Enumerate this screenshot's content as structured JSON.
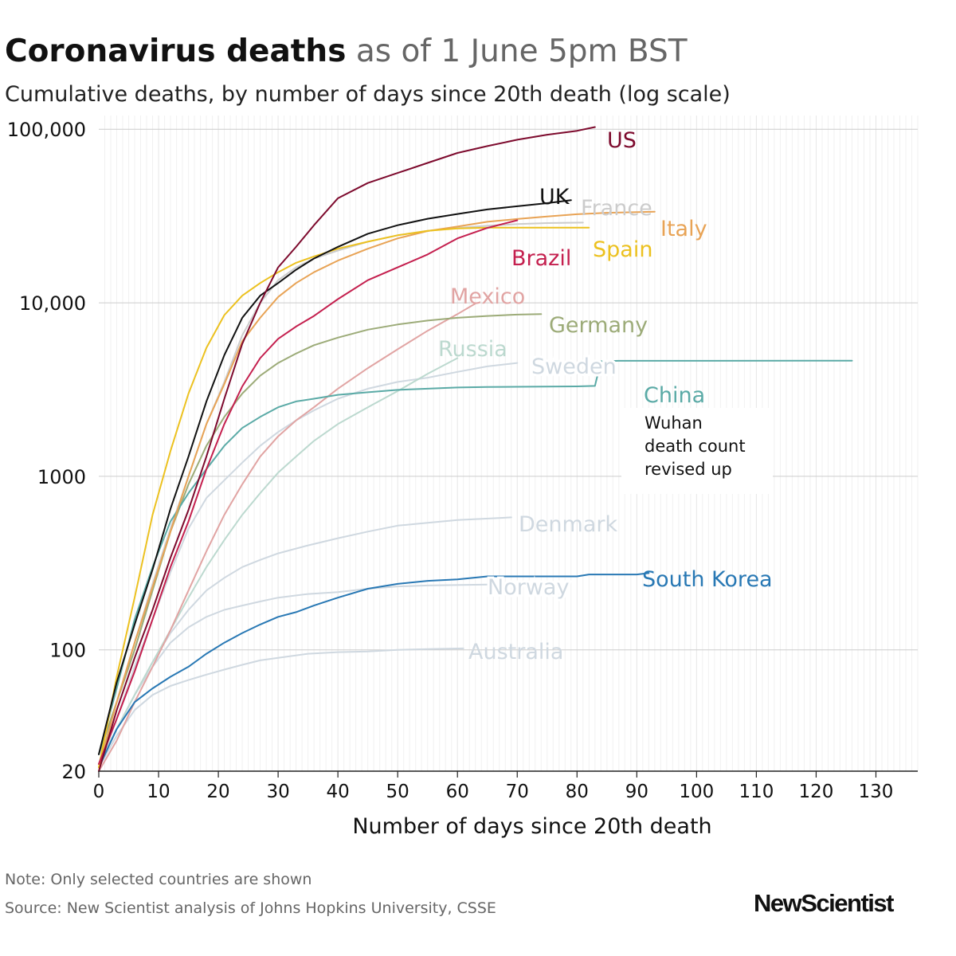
{
  "header": {
    "title_bold": "Coronavirus deaths",
    "title_rest": "as of 1 June 5pm BST",
    "subtitle": "Cumulative deaths, by number of days since 20th death (log scale)"
  },
  "footer": {
    "note": "Note: Only selected countries are shown",
    "source": "Source: New Scientist analysis of Johns Hopkins University, CSSE",
    "logo": "NewScientist"
  },
  "chart_data": {
    "type": "line",
    "title": "Coronavirus deaths as of 1 June 5pm BST",
    "subtitle": "Cumulative deaths, by number of days since 20th death (log scale)",
    "xlabel": "Number of days since 20th death",
    "ylabel": "Cumulative deaths",
    "yscale": "log",
    "xlim": [
      0,
      137
    ],
    "ylim": [
      20,
      120000
    ],
    "xticks": [
      0,
      10,
      20,
      30,
      40,
      50,
      60,
      70,
      80,
      90,
      100,
      110,
      120,
      130
    ],
    "xtick_labels": [
      "0",
      "10",
      "20",
      "30",
      "40",
      "50",
      "60",
      "70",
      "80",
      "90",
      "100",
      "110",
      "120",
      "130"
    ],
    "yticks": [
      20,
      100,
      1000,
      10000,
      100000
    ],
    "ytick_labels": [
      "20",
      "100",
      "1000",
      "10,000",
      "100,000"
    ],
    "grid": true,
    "annotation": {
      "lines": [
        "Wuhan",
        "death count",
        "revised up"
      ],
      "attached_to": "China"
    },
    "series": [
      {
        "name": "US",
        "color": "#7d0a2d",
        "x": [
          0,
          3,
          6,
          9,
          12,
          15,
          18,
          21,
          24,
          27,
          30,
          33,
          36,
          40,
          45,
          50,
          55,
          60,
          65,
          70,
          75,
          80,
          83
        ],
        "y": [
          20,
          45,
          90,
          170,
          340,
          640,
          1300,
          2800,
          5800,
          10000,
          16000,
          21000,
          28000,
          40000,
          49000,
          56000,
          64000,
          73000,
          80000,
          87000,
          93000,
          98000,
          103000
        ],
        "label": "US"
      },
      {
        "name": "UK",
        "color": "#111111",
        "x": [
          0,
          3,
          6,
          9,
          12,
          15,
          18,
          21,
          24,
          27,
          30,
          33,
          36,
          40,
          45,
          50,
          55,
          60,
          65,
          70,
          75,
          79
        ],
        "y": [
          25,
          65,
          140,
          290,
          650,
          1300,
          2700,
          5000,
          8200,
          11000,
          13000,
          15500,
          18000,
          21000,
          25000,
          28000,
          30500,
          32500,
          34500,
          36000,
          37500,
          39000
        ],
        "label": "UK"
      },
      {
        "name": "France",
        "color": "#cccccc",
        "x": [
          0,
          3,
          6,
          9,
          12,
          15,
          18,
          21,
          24,
          27,
          30,
          33,
          36,
          40,
          45,
          50,
          55,
          60,
          65,
          70,
          75,
          81
        ],
        "y": [
          22,
          50,
          110,
          240,
          500,
          1000,
          2000,
          3500,
          6500,
          10000,
          13500,
          16000,
          18000,
          20000,
          22500,
          24500,
          26000,
          27000,
          27800,
          28400,
          28800,
          29000
        ],
        "label": "France"
      },
      {
        "name": "Italy",
        "color": "#e8a355",
        "x": [
          0,
          3,
          6,
          9,
          12,
          15,
          18,
          21,
          24,
          27,
          30,
          33,
          36,
          40,
          45,
          50,
          55,
          60,
          65,
          70,
          75,
          80,
          85,
          93
        ],
        "y": [
          21,
          50,
          110,
          230,
          480,
          1000,
          2000,
          3400,
          6000,
          8200,
          10800,
          13000,
          15000,
          17500,
          20500,
          23500,
          25900,
          27500,
          29300,
          30400,
          31400,
          32400,
          33000,
          33500
        ],
        "label": "Italy"
      },
      {
        "name": "Spain",
        "color": "#ecc11f",
        "x": [
          0,
          3,
          6,
          9,
          12,
          15,
          18,
          21,
          24,
          27,
          30,
          33,
          36,
          40,
          45,
          50,
          55,
          60,
          65,
          70,
          75,
          82
        ],
        "y": [
          21,
          70,
          200,
          600,
          1400,
          3000,
          5500,
          8500,
          11000,
          13000,
          15000,
          17000,
          18500,
          20500,
          22500,
          24500,
          26000,
          26800,
          27100,
          27100,
          27100,
          27120
        ],
        "label": "Spain"
      },
      {
        "name": "Brazil",
        "color": "#c41f4e",
        "x": [
          0,
          3,
          6,
          9,
          12,
          15,
          18,
          21,
          24,
          27,
          30,
          33,
          36,
          40,
          45,
          50,
          55,
          60,
          65,
          70
        ],
        "y": [
          22,
          40,
          75,
          150,
          300,
          550,
          1100,
          2000,
          3300,
          4800,
          6200,
          7300,
          8400,
          10500,
          13500,
          16000,
          19000,
          23500,
          27000,
          29900
        ],
        "label": "Brazil"
      },
      {
        "name": "Mexico",
        "color": "#e1a4a3",
        "x": [
          0,
          3,
          6,
          9,
          12,
          15,
          18,
          21,
          24,
          27,
          30,
          33,
          36,
          40,
          45,
          50,
          55,
          60,
          63
        ],
        "y": [
          20,
          30,
          50,
          80,
          130,
          220,
          370,
          600,
          900,
          1300,
          1700,
          2100,
          2500,
          3200,
          4200,
          5400,
          6900,
          8600,
          9900
        ],
        "label": "Mexico"
      },
      {
        "name": "Germany",
        "color": "#9cab78",
        "x": [
          0,
          3,
          6,
          9,
          12,
          15,
          18,
          21,
          24,
          27,
          30,
          33,
          36,
          40,
          45,
          50,
          55,
          60,
          65,
          70,
          74
        ],
        "y": [
          25,
          50,
          100,
          220,
          480,
          900,
          1500,
          2200,
          3000,
          3800,
          4500,
          5100,
          5700,
          6300,
          7000,
          7500,
          7900,
          8200,
          8400,
          8550,
          8600
        ],
        "label": "Germany"
      },
      {
        "name": "Russia",
        "color": "#bcd9cf",
        "x": [
          0,
          3,
          6,
          9,
          12,
          15,
          18,
          21,
          24,
          27,
          30,
          33,
          36,
          40,
          45,
          50,
          55,
          60
        ],
        "y": [
          21,
          35,
          55,
          85,
          130,
          200,
          300,
          430,
          600,
          800,
          1050,
          1300,
          1600,
          2000,
          2500,
          3100,
          3900,
          4800
        ],
        "label": "Russia"
      },
      {
        "name": "Sweden",
        "color": "#cfd8e0",
        "x": [
          0,
          3,
          6,
          9,
          12,
          15,
          18,
          21,
          24,
          27,
          30,
          33,
          36,
          40,
          45,
          50,
          55,
          60,
          65,
          70
        ],
        "y": [
          21,
          40,
          80,
          150,
          280,
          500,
          750,
          950,
          1200,
          1500,
          1800,
          2100,
          2400,
          2800,
          3200,
          3500,
          3700,
          4000,
          4300,
          4500
        ],
        "label": "Sweden"
      },
      {
        "name": "China",
        "color": "#5aaaa6",
        "x": [
          0,
          3,
          6,
          9,
          12,
          15,
          18,
          21,
          24,
          27,
          30,
          33,
          36,
          40,
          45,
          50,
          55,
          60,
          65,
          70,
          75,
          80,
          83,
          84,
          87,
          126
        ],
        "y": [
          25,
          60,
          150,
          300,
          550,
          800,
          1100,
          1500,
          1900,
          2200,
          2500,
          2700,
          2800,
          2950,
          3050,
          3150,
          3200,
          3250,
          3270,
          3280,
          3290,
          3300,
          3320,
          4600,
          4630,
          4640
        ],
        "label": "China"
      },
      {
        "name": "Denmark",
        "color": "#cfd8e0",
        "x": [
          0,
          3,
          6,
          9,
          12,
          15,
          18,
          21,
          24,
          27,
          30,
          35,
          40,
          45,
          50,
          55,
          60,
          69
        ],
        "y": [
          22,
          35,
          55,
          85,
          125,
          170,
          220,
          260,
          300,
          330,
          360,
          400,
          440,
          480,
          520,
          540,
          560,
          580
        ],
        "label": "Denmark"
      },
      {
        "name": "Norway",
        "color": "#cfd8e0",
        "x": [
          0,
          3,
          6,
          9,
          12,
          15,
          18,
          21,
          24,
          27,
          30,
          35,
          40,
          45,
          50,
          55,
          65
        ],
        "y": [
          22,
          35,
          55,
          80,
          110,
          135,
          155,
          170,
          180,
          190,
          200,
          210,
          215,
          225,
          232,
          235,
          238
        ],
        "label": "Norway"
      },
      {
        "name": "South Korea",
        "color": "#2878b4",
        "x": [
          0,
          3,
          6,
          9,
          12,
          15,
          18,
          21,
          24,
          27,
          30,
          33,
          36,
          40,
          45,
          50,
          55,
          60,
          65,
          80,
          82,
          90,
          92
        ],
        "y": [
          21,
          35,
          50,
          60,
          70,
          80,
          95,
          110,
          125,
          140,
          155,
          165,
          180,
          200,
          225,
          240,
          250,
          255,
          265,
          265,
          272,
          272,
          277
        ],
        "label": "South Korea"
      },
      {
        "name": "Australia",
        "color": "#cfd8e0",
        "x": [
          0,
          3,
          6,
          9,
          12,
          15,
          18,
          21,
          24,
          27,
          30,
          35,
          40,
          45,
          50,
          55,
          61
        ],
        "y": [
          21,
          32,
          45,
          55,
          62,
          67,
          72,
          77,
          82,
          87,
          90,
          95,
          97,
          98,
          100,
          101,
          102
        ],
        "label": "Australia"
      }
    ]
  }
}
